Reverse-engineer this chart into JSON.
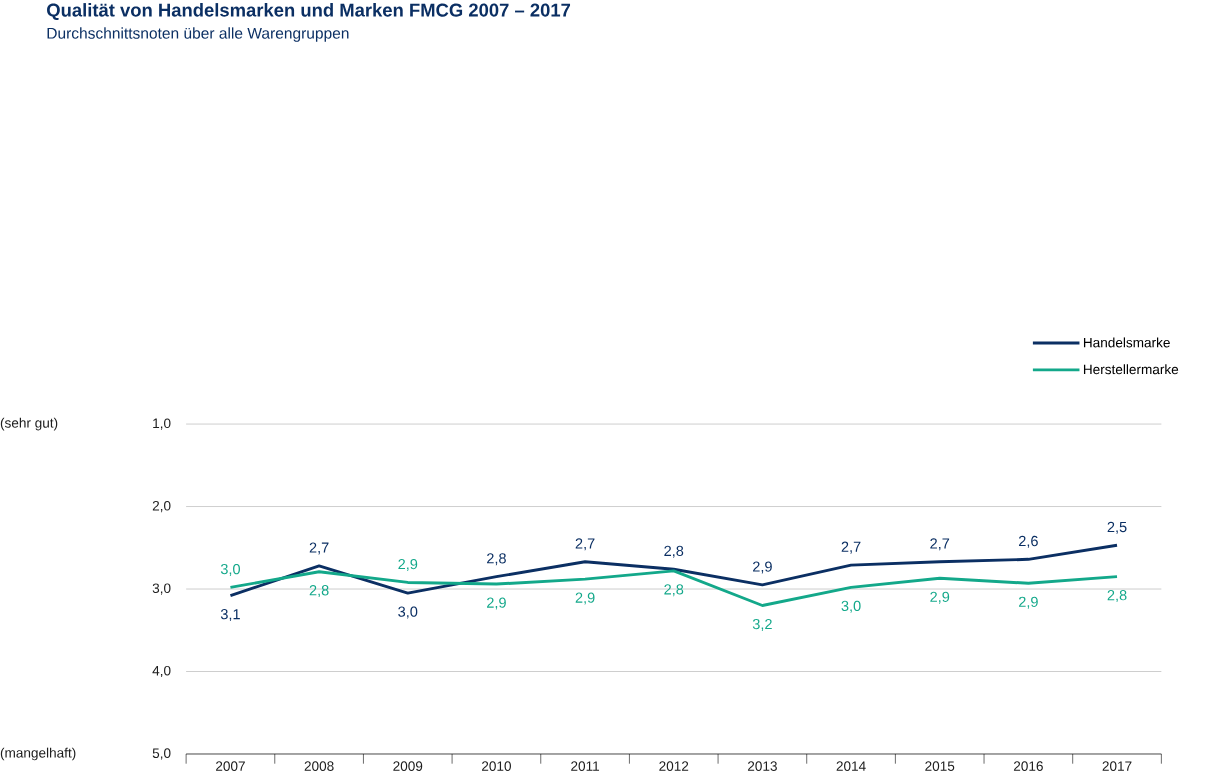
{
  "chart_data": {
    "type": "line",
    "title": "Qualität von Handelsmarken und Marken FMCG 2007 – 2017",
    "subtitle": "Durchschnittsnoten über alle Warengruppen",
    "categories": [
      "2007",
      "2008",
      "2009",
      "2010",
      "2011",
      "2012",
      "2013",
      "2014",
      "2015",
      "2016",
      "2017"
    ],
    "series": [
      {
        "name": "Handelsmarke",
        "color": "#0b2f63",
        "values": [
          3.08,
          2.72,
          3.05,
          2.85,
          2.67,
          2.76,
          2.95,
          2.71,
          2.67,
          2.64,
          2.47
        ],
        "value_labels": [
          "3,1",
          "2,7",
          "3,0",
          "2,8",
          "2,7",
          "2,8",
          "2,9",
          "2,7",
          "2,7",
          "2,6",
          "2,5"
        ]
      },
      {
        "name": "Herstellermarke",
        "color": "#13a88a",
        "values": [
          2.98,
          2.79,
          2.92,
          2.94,
          2.88,
          2.78,
          3.2,
          2.98,
          2.87,
          2.93,
          2.85
        ],
        "value_labels": [
          "3,0",
          "2,8",
          "2,9",
          "2,9",
          "2,9",
          "2,8",
          "3,2",
          "3,0",
          "2,9",
          "2,9",
          "2,8"
        ]
      }
    ],
    "ylim": [
      5,
      1
    ],
    "yticks": [
      {
        "value": 1,
        "label": "1,0"
      },
      {
        "value": 2,
        "label": "2,0"
      },
      {
        "value": 3,
        "label": "3,0"
      },
      {
        "value": 4,
        "label": "4,0"
      },
      {
        "value": 5,
        "label": "5,0"
      }
    ],
    "annotations": [
      "(sehr gut)",
      "(mangelhaft)"
    ],
    "grid": "y",
    "legend": "top right",
    "marker": "none",
    "line_style": "solid"
  }
}
